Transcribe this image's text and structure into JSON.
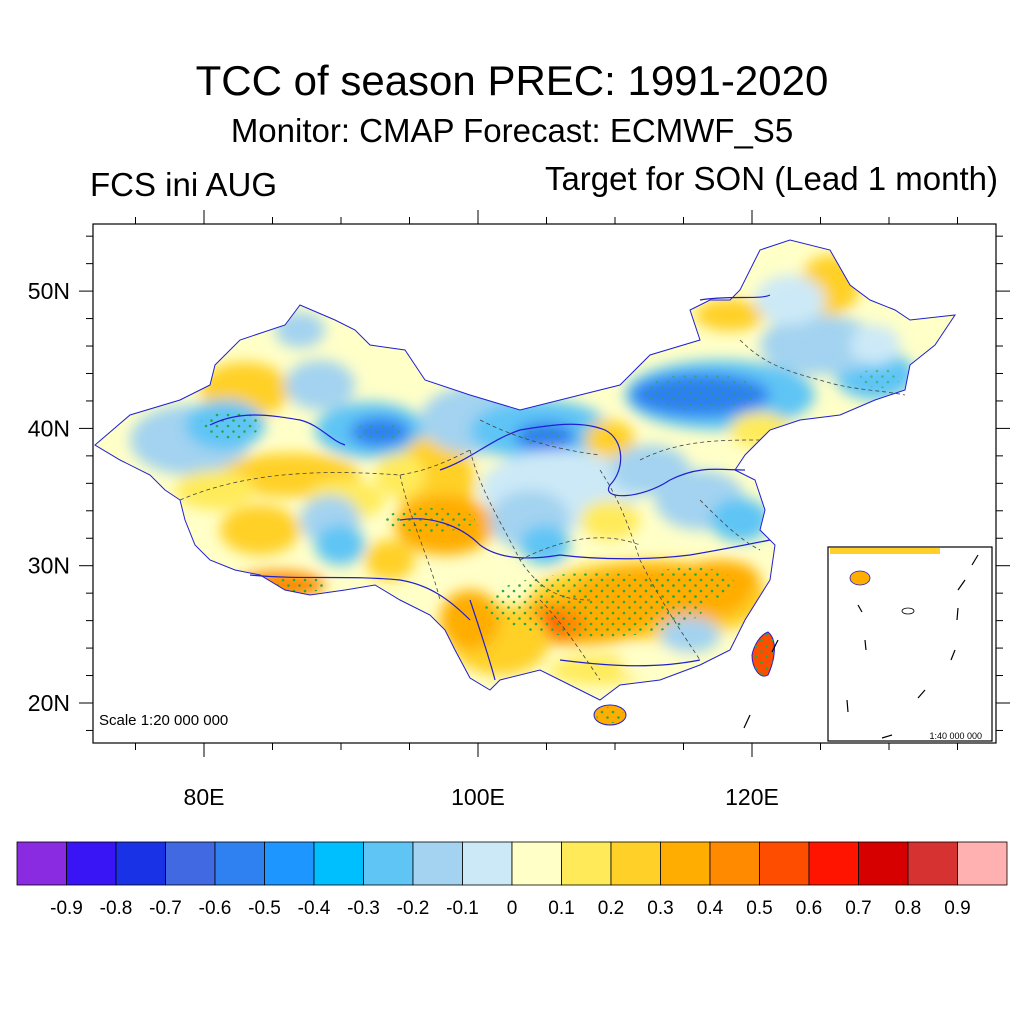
{
  "title": "TCC of season PREC: 1991-2020",
  "subtitle": "Monitor: CMAP   Forecast: ECMWF_S5",
  "left_label": "FCS ini AUG",
  "right_label": "Target for SON (Lead 1 month)",
  "scale_main": "Scale 1:20 000 000",
  "scale_inset": "1:40 000 000",
  "lat_labels": [
    {
      "label": "50N",
      "lat": 50
    },
    {
      "label": "40N",
      "lat": 40
    },
    {
      "label": "30N",
      "lat": 30
    },
    {
      "label": "20N",
      "lat": 20
    }
  ],
  "lon_labels": [
    {
      "label": "80E",
      "lon": 80
    },
    {
      "label": "100E",
      "lon": 100
    },
    {
      "label": "120E",
      "lon": 120
    }
  ],
  "colorbar": {
    "colors": [
      "#8a2be2",
      "#3914f5",
      "#1a32e6",
      "#4169e1",
      "#2f80f0",
      "#1e96ff",
      "#00bfff",
      "#5ec5f5",
      "#a3d3f0",
      "#cce9f7",
      "#ffffc8",
      "#ffeb5a",
      "#ffd028",
      "#ffad00",
      "#ff8a00",
      "#ff4d00",
      "#ff1400",
      "#d70000",
      "#d73232",
      "#ffb0b0"
    ],
    "labels": [
      "-0.9",
      "-0.8",
      "-0.7",
      "-0.6",
      "-0.5",
      "-0.4",
      "-0.3",
      "-0.2",
      "-0.1",
      "0",
      "0.1",
      "0.2",
      "0.3",
      "0.4",
      "0.5",
      "0.6",
      "0.7",
      "0.8",
      "0.9"
    ]
  },
  "colors": {
    "coast": "#2020d0",
    "stipple": "#22aa44",
    "boundary": "#444444"
  }
}
